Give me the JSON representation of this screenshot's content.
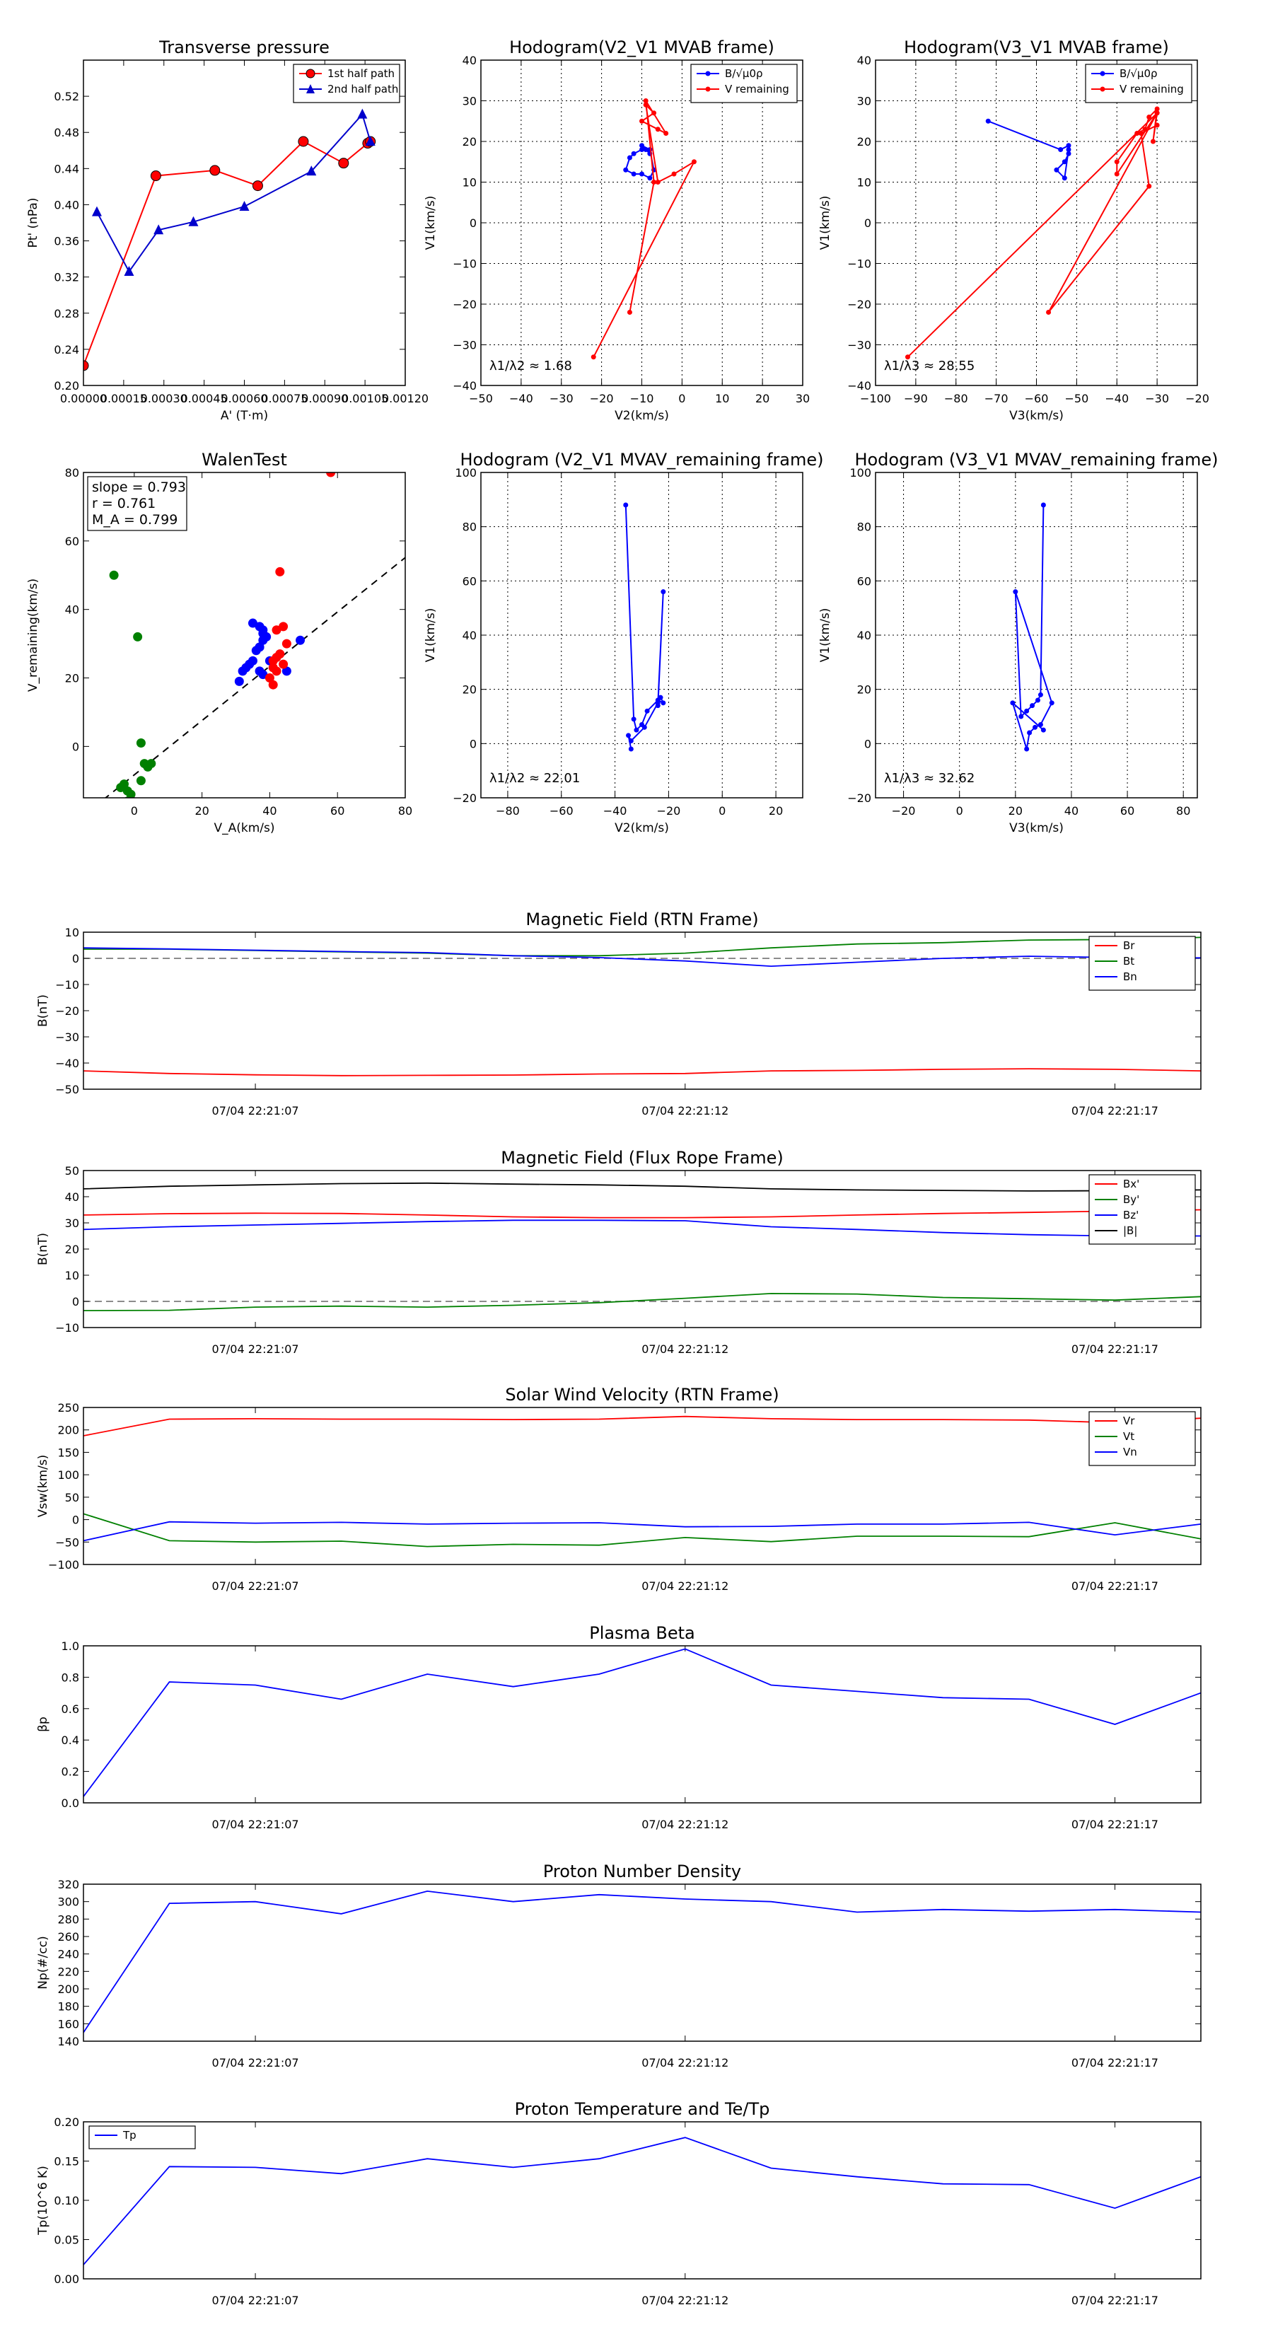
{
  "chart_data": [
    {
      "id": "pt",
      "type": "line",
      "title": "Transverse pressure",
      "xlabel": "A' (T·m)",
      "ylabel": "Pt' (nPa)",
      "xlim": [
        0,
        0.0012
      ],
      "ylim": [
        0.2,
        0.56
      ],
      "xticks": [
        0,
        0.00015,
        0.0003,
        0.00045,
        0.0006,
        0.00075,
        0.0009,
        0.00105,
        0.0012
      ],
      "xtick_labels": [
        "0.00000",
        "0.00015",
        "0.00030",
        "0.00045",
        "0.00060",
        "0.00075",
        "0.00090",
        "0.00105",
        "0.00120"
      ],
      "yticks": [
        0.2,
        0.24,
        0.28,
        0.32,
        0.36,
        0.4,
        0.44,
        0.48,
        0.52
      ],
      "ytick_labels": [
        "0.20",
        "0.24",
        "0.28",
        "0.32",
        "0.36",
        "0.40",
        "0.44",
        "0.48",
        "0.52"
      ],
      "grid": false,
      "legend": "top-right",
      "series": [
        {
          "name": "1st half path",
          "color": "#ff0000",
          "marker": "circle",
          "x": [
            0,
            0.00027,
            0.00049,
            0.00065,
            0.00082,
            0.00097,
            0.00106,
            0.00107
          ],
          "y": [
            0.222,
            0.432,
            0.438,
            0.421,
            0.47,
            0.446,
            0.468,
            0.47
          ]
        },
        {
          "name": "2nd half path",
          "color": "#0000cc",
          "marker": "triangle",
          "x": [
            5e-05,
            0.00017,
            0.00028,
            0.00041,
            0.0006,
            0.00085,
            0.00104,
            0.00107
          ],
          "y": [
            0.392,
            0.326,
            0.372,
            0.381,
            0.398,
            0.437,
            0.5,
            0.47
          ]
        }
      ]
    },
    {
      "id": "h1",
      "type": "line",
      "title": "Hodogram(V2_V1 MVAB frame)",
      "xlabel": "V2(km/s)",
      "ylabel": "V1(km/s)",
      "xlim": [
        -50,
        30
      ],
      "ylim": [
        -40,
        40
      ],
      "xticks": [
        -50,
        -40,
        -30,
        -20,
        -10,
        0,
        10,
        20,
        30
      ],
      "yticks": [
        -40,
        -30,
        -20,
        -10,
        0,
        10,
        20,
        30,
        40
      ],
      "grid": true,
      "legend": "top-right",
      "annotation": "λ1/λ2 ≈ 1.68",
      "series": [
        {
          "name": "B/√μ0ρ",
          "color": "#0000ff",
          "x": [
            -10,
            -12,
            -13,
            -14,
            -12,
            -10,
            -8,
            -7,
            -8,
            -10,
            -9,
            -8
          ],
          "y": [
            18,
            17,
            16,
            13,
            12,
            12,
            11,
            13,
            18,
            19,
            18,
            17
          ]
        },
        {
          "name": "V remaining",
          "color": "#ff0000",
          "x": [
            -22,
            3,
            -2,
            -6,
            -9,
            -7,
            -10,
            -6,
            -4,
            -9,
            -7,
            -13
          ],
          "y": [
            -33,
            15,
            12,
            10,
            29,
            27,
            25,
            23,
            22,
            30,
            10,
            -22
          ]
        }
      ]
    },
    {
      "id": "h2",
      "type": "line",
      "title": "Hodogram(V3_V1 MVAB frame)",
      "xlabel": "V3(km/s)",
      "ylabel": "V1(km/s)",
      "xlim": [
        -100,
        -20
      ],
      "ylim": [
        -40,
        40
      ],
      "xticks": [
        -100,
        -90,
        -80,
        -70,
        -60,
        -50,
        -40,
        -30,
        -20
      ],
      "yticks": [
        -40,
        -30,
        -20,
        -10,
        0,
        10,
        20,
        30,
        40
      ],
      "grid": true,
      "legend": "top-right",
      "annotation": "λ1/λ3 ≈ 28.55",
      "series": [
        {
          "name": "B/√μ0ρ",
          "color": "#0000ff",
          "x": [
            -72,
            -54,
            -52,
            -52,
            -53,
            -55,
            -53,
            -52
          ],
          "y": [
            25,
            18,
            19,
            17,
            15,
            13,
            11,
            18
          ]
        },
        {
          "name": "V remaining",
          "color": "#ff0000",
          "x": [
            -92,
            -30,
            -40,
            -40,
            -35,
            -33,
            -32,
            -30,
            -31,
            -30,
            -57,
            -32,
            -34,
            -30
          ],
          "y": [
            -33,
            27,
            12,
            15,
            22,
            23,
            26,
            28,
            20,
            27,
            -22,
            9,
            22,
            24
          ]
        }
      ]
    },
    {
      "id": "walen",
      "type": "scatter",
      "title": "WalenTest",
      "xlabel": "V_A(km/s)",
      "ylabel": "V_remaining(km/s)",
      "xlim": [
        -15,
        80
      ],
      "ylim": [
        -15,
        80
      ],
      "xticks": [
        0,
        20,
        40,
        60,
        80
      ],
      "yticks": [
        0,
        20,
        40,
        60,
        80
      ],
      "grid": false,
      "legend": "",
      "annotations": [
        "slope = 0.793",
        "r = 0.761",
        "M_A = 0.799"
      ],
      "fit_line": {
        "slope": 0.793,
        "intercept": -8.3
      },
      "series": [
        {
          "name": "green",
          "color": "#008000",
          "x": [
            -6,
            1,
            -4,
            -3,
            -2,
            2,
            3,
            4,
            5,
            2,
            -1,
            -2
          ],
          "y": [
            50,
            32,
            -12,
            -11,
            -13,
            1,
            -5,
            -6,
            -5,
            -10,
            -14,
            -16
          ]
        },
        {
          "name": "blue",
          "color": "#0000ff",
          "x": [
            35,
            37,
            38,
            39,
            38,
            37,
            36,
            35,
            34,
            33,
            32,
            31,
            37,
            38,
            45,
            49,
            40,
            38,
            37
          ],
          "y": [
            36,
            35,
            33,
            32,
            31,
            29,
            28,
            25,
            24,
            23,
            22,
            19,
            22,
            21,
            22,
            31,
            25,
            34,
            29
          ]
        },
        {
          "name": "red",
          "color": "#ff0000",
          "x": [
            43,
            42,
            44,
            41,
            42,
            43,
            45,
            40,
            41,
            42,
            41,
            44,
            58
          ],
          "y": [
            51,
            34,
            35,
            25,
            26,
            27,
            30,
            20,
            23,
            22,
            18,
            24,
            80
          ]
        }
      ]
    },
    {
      "id": "h3",
      "type": "line",
      "title": "Hodogram (V2_V1 MVAV_remaining frame)",
      "xlabel": "V2(km/s)",
      "ylabel": "V1(km/s)",
      "xlim": [
        -90,
        30
      ],
      "ylim": [
        -20,
        100
      ],
      "xticks": [
        -80,
        -60,
        -40,
        -20,
        0,
        20
      ],
      "yticks": [
        -20,
        0,
        20,
        40,
        60,
        80,
        100
      ],
      "grid": true,
      "legend": "",
      "annotation": "λ1/λ2 ≈ 22.01",
      "series": [
        {
          "name": "B",
          "color": "#0000ff",
          "x": [
            -36,
            -33,
            -32,
            -30,
            -28,
            -24,
            -22,
            -23,
            -24,
            -22,
            -24,
            -29,
            -34,
            -35,
            -34
          ],
          "y": [
            88,
            9,
            5,
            7,
            12,
            16,
            15,
            17,
            14,
            56,
            15,
            6,
            1,
            3,
            -2
          ]
        }
      ]
    },
    {
      "id": "h4",
      "type": "line",
      "title": "Hodogram (V3_V1 MVAV_remaining frame)",
      "xlabel": "V3(km/s)",
      "ylabel": "V1(km/s)",
      "xlim": [
        -30,
        85
      ],
      "ylim": [
        -20,
        100
      ],
      "xticks": [
        -20,
        0,
        20,
        40,
        60,
        80
      ],
      "yticks": [
        -20,
        0,
        20,
        40,
        60,
        80,
        100
      ],
      "grid": true,
      "legend": "",
      "annotation": "λ1/λ3 ≈ 32.62",
      "series": [
        {
          "name": "B",
          "color": "#0000ff",
          "x": [
            30,
            29,
            28,
            26,
            24,
            22,
            20,
            33,
            29,
            27,
            25,
            24,
            19,
            30
          ],
          "y": [
            88,
            18,
            16,
            14,
            12,
            10,
            56,
            15,
            7,
            6,
            4,
            -2,
            15,
            5
          ]
        }
      ]
    },
    {
      "id": "mag_rtn",
      "type": "line",
      "title": "Magnetic Field (RTN Frame)",
      "ylabel": "B(nT)",
      "xlim": [
        0,
        13
      ],
      "ylim": [
        -50,
        10
      ],
      "yticks": [
        -50,
        -40,
        -30,
        -20,
        -10,
        0,
        10
      ],
      "xticks": [
        2,
        7,
        12
      ],
      "xtick_labels": [
        "07/04 22:21:07",
        "07/04 22:21:12",
        "07/04 22:21:17"
      ],
      "zero_line": true,
      "legend": "top-right",
      "series": [
        {
          "name": "Br",
          "color": "#ff0000",
          "y": [
            -43,
            -44,
            -44.5,
            -44.8,
            -44.7,
            -44.6,
            -44.2,
            -44,
            -43,
            -42.8,
            -42.4,
            -42.2,
            -42.4,
            -43
          ]
        },
        {
          "name": "Bt",
          "color": "#008000",
          "y": [
            3.5,
            3.5,
            3,
            2.5,
            2,
            1,
            1,
            2,
            4,
            5.5,
            6,
            7,
            7.2,
            8
          ]
        },
        {
          "name": "Bn",
          "color": "#0000ff",
          "y": [
            4,
            3.6,
            3.1,
            2.6,
            2.2,
            1,
            0.3,
            -1,
            -3,
            -1.5,
            0,
            0.8,
            0.3,
            0.2
          ]
        }
      ]
    },
    {
      "id": "mag_fr",
      "type": "line",
      "title": "Magnetic Field (Flux Rope Frame)",
      "ylabel": "B(nT)",
      "xlim": [
        0,
        13
      ],
      "ylim": [
        -10,
        50
      ],
      "yticks": [
        -10,
        0,
        10,
        20,
        30,
        40,
        50
      ],
      "xticks": [
        2,
        7,
        12
      ],
      "xtick_labels": [
        "07/04 22:21:07",
        "07/04 22:21:12",
        "07/04 22:21:17"
      ],
      "zero_line": true,
      "legend": "top-right",
      "series": [
        {
          "name": "Bx'",
          "color": "#ff0000",
          "y": [
            33,
            33.5,
            33.7,
            33.6,
            33,
            32.3,
            32,
            32,
            32.3,
            33,
            33.6,
            34,
            34.5,
            35
          ]
        },
        {
          "name": "By'",
          "color": "#008000",
          "y": [
            -3.5,
            -3.4,
            -2.2,
            -1.8,
            -2.2,
            -1.5,
            -0.5,
            1.2,
            3,
            2.8,
            1.5,
            1,
            0.5,
            1.8
          ]
        },
        {
          "name": "Bz'",
          "color": "#0000ff",
          "y": [
            27.5,
            28.5,
            29.2,
            29.8,
            30.5,
            31,
            31,
            30.8,
            28.5,
            27.5,
            26.3,
            25.5,
            25,
            25
          ]
        },
        {
          "name": "|B|",
          "color": "#000000",
          "y": [
            43,
            44,
            44.5,
            45,
            45.2,
            44.8,
            44.5,
            44,
            43,
            42.6,
            42.4,
            42.2,
            42.3,
            42.6
          ]
        }
      ]
    },
    {
      "id": "vsw",
      "type": "line",
      "title": "Solar Wind Velocity (RTN Frame)",
      "ylabel": "Vsw(km/s)",
      "xlim": [
        0,
        13
      ],
      "ylim": [
        -100,
        250
      ],
      "yticks": [
        -100,
        -50,
        0,
        50,
        100,
        150,
        200,
        250
      ],
      "xticks": [
        2,
        7,
        12
      ],
      "xtick_labels": [
        "07/04 22:21:07",
        "07/04 22:21:12",
        "07/04 22:21:17"
      ],
      "zero_line": false,
      "legend": "top-right",
      "series": [
        {
          "name": "Vr",
          "color": "#ff0000",
          "y": [
            187,
            224,
            225,
            224,
            224,
            223,
            224,
            230,
            225,
            223,
            223,
            222,
            216,
            226
          ]
        },
        {
          "name": "Vt",
          "color": "#008000",
          "y": [
            13,
            -47,
            -50,
            -48,
            -60,
            -55,
            -57,
            -40,
            -49,
            -37,
            -37,
            -38,
            -7,
            -43
          ]
        },
        {
          "name": "Vn",
          "color": "#0000ff",
          "y": [
            -47,
            -5,
            -8,
            -6,
            -10,
            -8,
            -7,
            -16,
            -15,
            -10,
            -10,
            -6,
            -34,
            -10
          ]
        }
      ]
    },
    {
      "id": "beta",
      "type": "line",
      "title": "Plasma Beta",
      "ylabel": "βp",
      "xlim": [
        0,
        13
      ],
      "ylim": [
        0,
        1.0
      ],
      "yticks": [
        0.0,
        0.2,
        0.4,
        0.6,
        0.8,
        1.0
      ],
      "ytick_labels": [
        "0.0",
        "0.2",
        "0.4",
        "0.6",
        "0.8",
        "1.0"
      ],
      "xticks": [
        2,
        7,
        12
      ],
      "xtick_labels": [
        "07/04 22:21:07",
        "07/04 22:21:12",
        "07/04 22:21:17"
      ],
      "legend": "",
      "series": [
        {
          "name": "beta",
          "color": "#0000ff",
          "y": [
            0.04,
            0.77,
            0.75,
            0.66,
            0.82,
            0.74,
            0.82,
            0.98,
            0.75,
            0.71,
            0.67,
            0.66,
            0.5,
            0.7
          ]
        }
      ]
    },
    {
      "id": "np",
      "type": "line",
      "title": "Proton Number Density",
      "ylabel": "Np(#/cc)",
      "xlim": [
        0,
        13
      ],
      "ylim": [
        140,
        320
      ],
      "yticks": [
        140,
        160,
        180,
        200,
        220,
        240,
        260,
        280,
        300,
        320
      ],
      "xticks": [
        2,
        7,
        12
      ],
      "xtick_labels": [
        "07/04 22:21:07",
        "07/04 22:21:12",
        "07/04 22:21:17"
      ],
      "legend": "",
      "series": [
        {
          "name": "Np",
          "color": "#0000ff",
          "y": [
            150,
            298,
            300,
            286,
            312,
            300,
            308,
            303,
            300,
            288,
            291,
            289,
            291,
            288
          ]
        }
      ]
    },
    {
      "id": "tp",
      "type": "line",
      "title": "Proton Temperature and Te/Tp",
      "ylabel": "Tp(10^6 K)",
      "xlim": [
        0,
        13
      ],
      "ylim": [
        0,
        0.2
      ],
      "yticks": [
        0.0,
        0.05,
        0.1,
        0.15,
        0.2
      ],
      "ytick_labels": [
        "0.00",
        "0.05",
        "0.10",
        "0.15",
        "0.20"
      ],
      "xticks": [
        2,
        7,
        12
      ],
      "xtick_labels": [
        "07/04 22:21:07",
        "07/04 22:21:12",
        "07/04 22:21:17"
      ],
      "legend": "top-left",
      "series": [
        {
          "name": "Tp",
          "color": "#0000ff",
          "y": [
            0.018,
            0.143,
            0.142,
            0.134,
            0.153,
            0.142,
            0.153,
            0.18,
            0.141,
            0.13,
            0.121,
            0.12,
            0.09,
            0.13
          ]
        }
      ]
    }
  ]
}
